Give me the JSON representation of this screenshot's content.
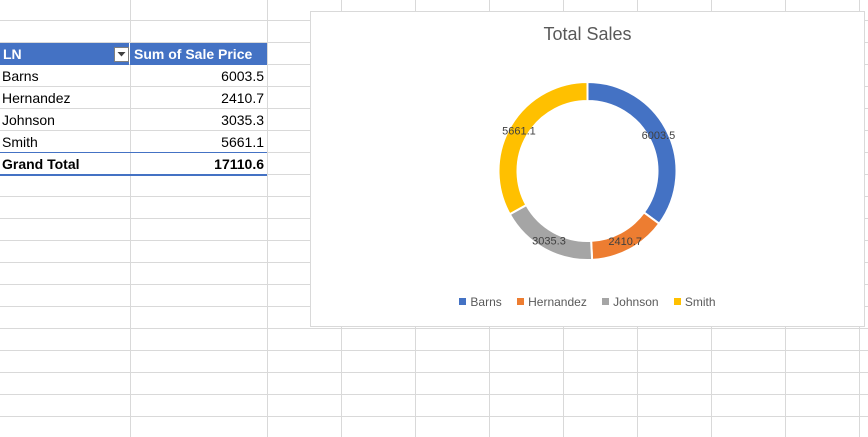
{
  "pivot": {
    "header_row_label": "LN",
    "header_values_label": "Sum of Sale Price",
    "rows": [
      {
        "label": "Barns",
        "value": "6003.5"
      },
      {
        "label": "Hernandez",
        "value": "2410.7"
      },
      {
        "label": "Johnson",
        "value": "3035.3"
      },
      {
        "label": "Smith",
        "value": "5661.1"
      }
    ],
    "grand_total_label": "Grand Total",
    "grand_total_value": "17110.6"
  },
  "colors": {
    "header_bg": "#4472c4",
    "gridline": "#d9d9d9"
  },
  "chart_data": {
    "type": "pie",
    "variant": "doughnut",
    "title": "Total Sales",
    "categories": [
      "Barns",
      "Hernandez",
      "Johnson",
      "Smith"
    ],
    "values": [
      6003.5,
      2410.7,
      3035.3,
      5661.1
    ],
    "data_labels": [
      "6003.5",
      "2410.7",
      "3035.3",
      "5661.1"
    ],
    "colors": [
      "#4472c4",
      "#ed7d31",
      "#a5a5a5",
      "#ffc000"
    ],
    "legend_position": "bottom"
  }
}
